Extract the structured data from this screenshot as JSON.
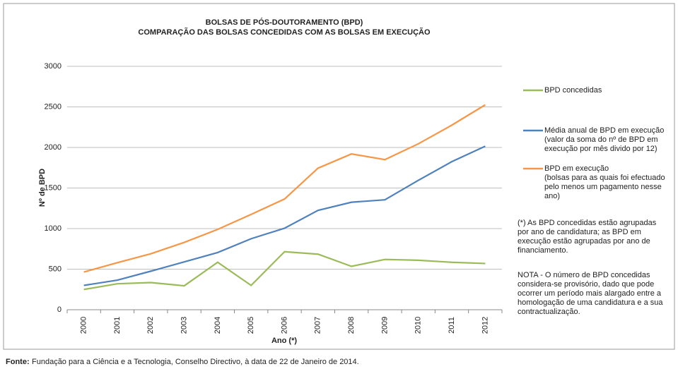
{
  "chart_data": {
    "type": "line",
    "title": "BOLSAS DE PÓS-DOUTORAMENTO (BPD)",
    "subtitle": "COMPARAÇÃO DAS BOLSAS CONCEDIDAS COM AS BOLSAS EM EXECUÇÃO",
    "x_label": "Ano (*)",
    "y_label": "Nº de BPD",
    "categories": [
      "2000",
      "2001",
      "2002",
      "2003",
      "2004",
      "2005",
      "2006",
      "2007",
      "2008",
      "2009",
      "2010",
      "2011",
      "2012"
    ],
    "series": [
      {
        "name": "BPD concedidas",
        "color": "#9bbb59",
        "description": [],
        "values": [
          250,
          320,
          335,
          295,
          585,
          300,
          715,
          685,
          535,
          620,
          610,
          585,
          570
        ]
      },
      {
        "name": "Média anual de BPD em execução",
        "color": "#4f81bd",
        "description": [
          "(valor da soma do nº de BPD em",
          "execução por mês divido por 12)"
        ],
        "values": [
          300,
          365,
          475,
          590,
          705,
          875,
          1005,
          1225,
          1325,
          1355,
          1595,
          1825,
          2015
        ]
      },
      {
        "name": "BPD em execução",
        "color": "#f79646",
        "description": [
          "(bolsas para as quais foi efectuado",
          "pelo menos um pagamento nesse",
          "ano)"
        ],
        "values": [
          465,
          580,
          690,
          830,
          990,
          1175,
          1365,
          1745,
          1920,
          1850,
          2045,
          2275,
          2525
        ]
      }
    ],
    "ylim": [
      0,
      3000
    ],
    "yticks": [
      0,
      500,
      1000,
      1500,
      2000,
      2500,
      3000
    ],
    "grid": true,
    "notes": [
      [
        "(*) As BPD concedidas estão agrupadas",
        "por ano de candidatura; as BPD em",
        "execução estão agrupadas por ano de",
        "financiamento."
      ],
      [
        "NOTA - O número de BPD concedidas",
        "considera-se provisório, dado que pode",
        "ocorrer um período mais alargado entre a",
        "homologação de uma candidatura e a sua",
        "contractualização."
      ]
    ],
    "source_label": "Fonte:",
    "source": "Fundação para a Ciência e a Tecnologia, Conselho Directivo, à data de 22 de Janeiro de 2014."
  }
}
